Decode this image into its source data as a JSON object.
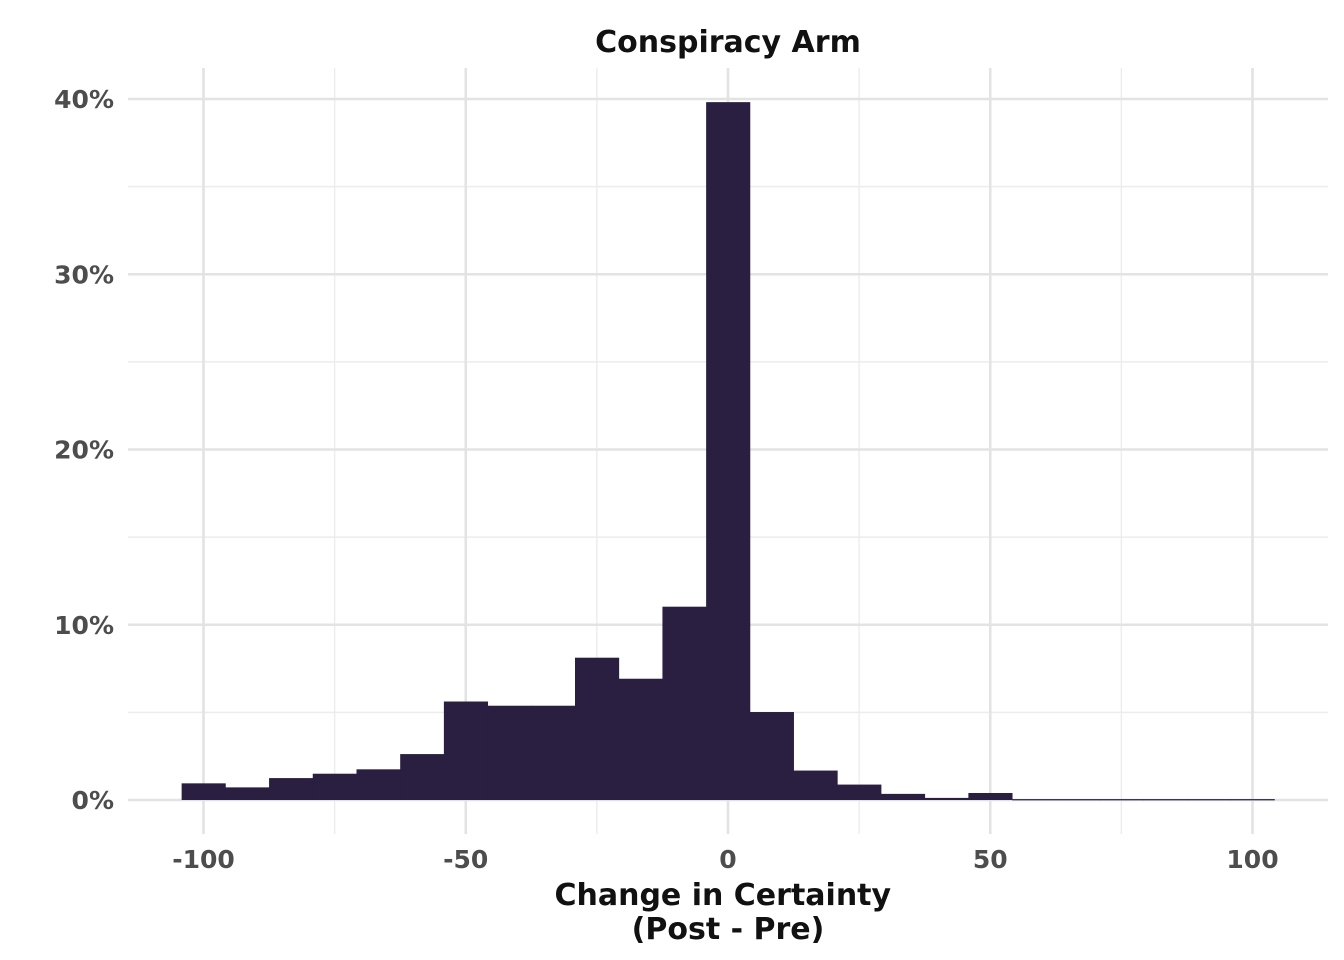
{
  "chart_data": {
    "type": "bar",
    "subtype": "histogram",
    "title": "Conspiracy Arm",
    "xlabel": [
      "Change in Certainty",
      "(Post - Pre)"
    ],
    "ylabel": "",
    "bin_width": 8.33,
    "bins": [
      {
        "x0": -104.17,
        "x1": -95.83,
        "value": 0.0095
      },
      {
        "x0": -95.83,
        "x1": -87.5,
        "value": 0.0072
      },
      {
        "x0": -87.5,
        "x1": -79.17,
        "value": 0.0125
      },
      {
        "x0": -79.17,
        "x1": -70.83,
        "value": 0.015
      },
      {
        "x0": -70.83,
        "x1": -62.5,
        "value": 0.0175
      },
      {
        "x0": -62.5,
        "x1": -54.17,
        "value": 0.0262
      },
      {
        "x0": -54.17,
        "x1": -45.83,
        "value": 0.0562
      },
      {
        "x0": -45.83,
        "x1": -37.5,
        "value": 0.0538
      },
      {
        "x0": -37.5,
        "x1": -29.17,
        "value": 0.0538
      },
      {
        "x0": -29.17,
        "x1": -20.83,
        "value": 0.0812
      },
      {
        "x0": -20.83,
        "x1": -12.5,
        "value": 0.0692
      },
      {
        "x0": -12.5,
        "x1": -4.17,
        "value": 0.1103
      },
      {
        "x0": -4.17,
        "x1": 4.17,
        "value": 0.3982
      },
      {
        "x0": 4.17,
        "x1": 12.5,
        "value": 0.0502
      },
      {
        "x0": 12.5,
        "x1": 20.83,
        "value": 0.0168
      },
      {
        "x0": 20.83,
        "x1": 29.17,
        "value": 0.0088
      },
      {
        "x0": 29.17,
        "x1": 37.5,
        "value": 0.0035
      },
      {
        "x0": 37.5,
        "x1": 45.83,
        "value": 0.0012
      },
      {
        "x0": 45.83,
        "x1": 54.17,
        "value": 0.004
      },
      {
        "x0": 54.17,
        "x1": 62.5,
        "value": 0.0005
      },
      {
        "x0": 62.5,
        "x1": 70.83,
        "value": 0.0005
      },
      {
        "x0": 70.83,
        "x1": 79.17,
        "value": 0.0005
      },
      {
        "x0": 79.17,
        "x1": 87.5,
        "value": 0.0005
      },
      {
        "x0": 87.5,
        "x1": 95.83,
        "value": 0.0005
      },
      {
        "x0": 95.83,
        "x1": 104.17,
        "value": 0.0005
      }
    ],
    "xlim": [
      -108,
      108
    ],
    "ylim": [
      0,
      0.4
    ],
    "x_ticks": [
      -100,
      -50,
      0,
      50,
      100
    ],
    "x_tick_labels": [
      "-100",
      "-50",
      "0",
      "50",
      "100"
    ],
    "x_minor_ticks": [
      -75,
      -25,
      25,
      75
    ],
    "y_ticks": [
      0,
      0.1,
      0.2,
      0.3,
      0.4
    ],
    "y_tick_labels": [
      "0%",
      "10%",
      "20%",
      "30%",
      "40%"
    ],
    "y_minor_ticks": [
      0.05,
      0.15,
      0.25,
      0.35
    ],
    "grid": true,
    "legend": "none",
    "colors": {
      "bar": "#2a1f40",
      "background": "#ffffff",
      "grid_major": "#e3e3e3",
      "grid_minor": "#ececec"
    }
  }
}
